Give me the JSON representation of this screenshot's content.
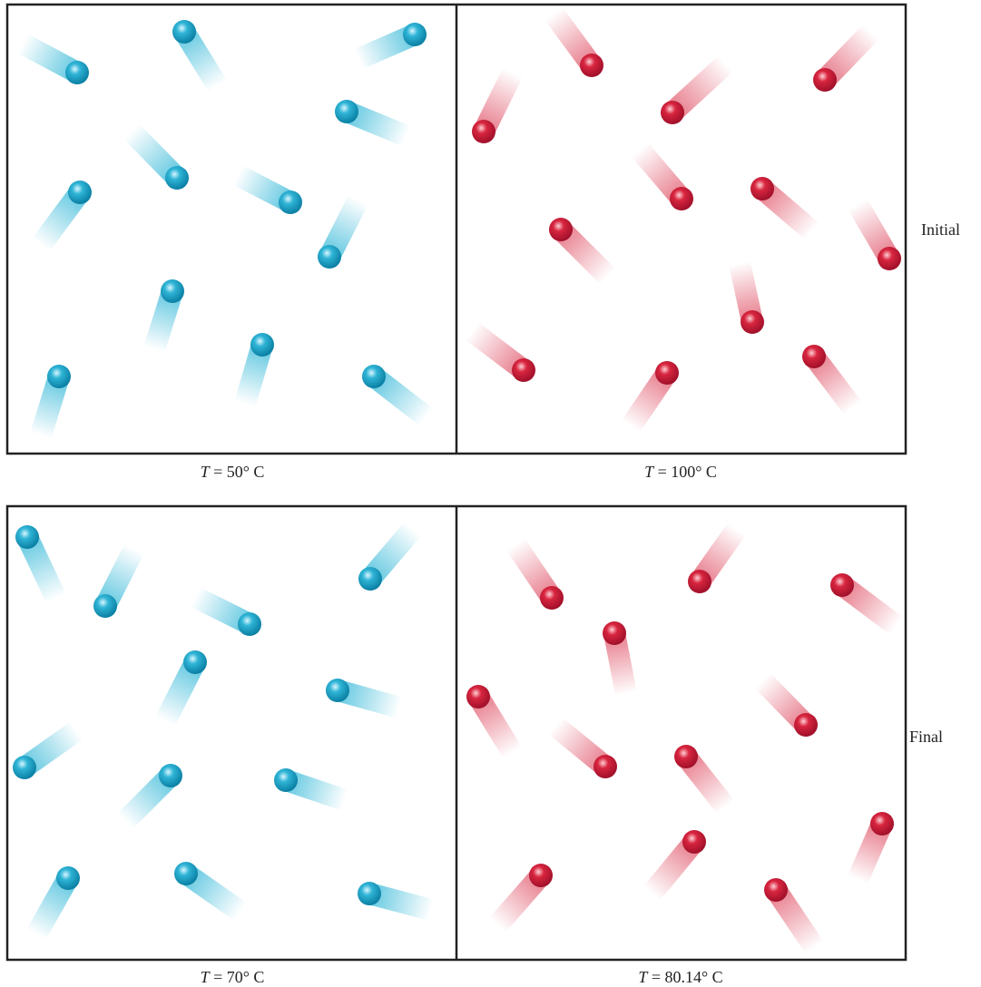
{
  "panels": [
    {
      "symbol": "T",
      "rest": "= 50° C"
    },
    {
      "symbol": "T",
      "rest": "= 100° C"
    },
    {
      "symbol": "T",
      "rest": "= 70° C"
    },
    {
      "symbol": "T",
      "rest": "= 80.14° C"
    }
  ],
  "rows": [
    "Initial",
    "Final"
  ]
}
